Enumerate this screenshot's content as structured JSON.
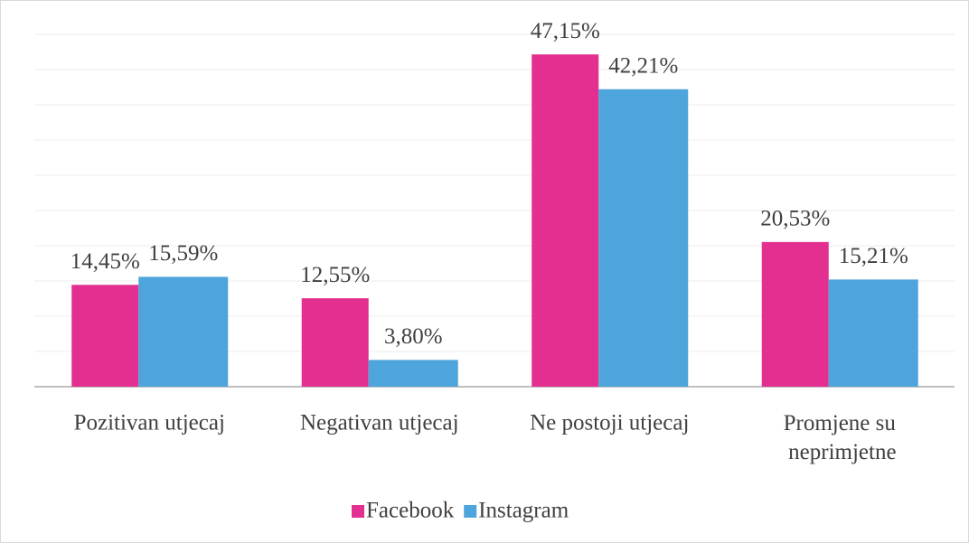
{
  "chart_data": {
    "type": "bar",
    "categories": [
      "Pozitivan utjecaj",
      "Negativan utjecaj",
      "Ne postoji utjecaj",
      "Promjene su neprimjetne"
    ],
    "series": [
      {
        "name": "Facebook",
        "color": "#e32f8f",
        "values": [
          14.45,
          12.55,
          47.15,
          20.53
        ],
        "value_labels": [
          "14,45%",
          "12,55%",
          "47,15%",
          "20,53%"
        ]
      },
      {
        "name": "Instagram",
        "color": "#4ea5dc",
        "values": [
          15.59,
          3.8,
          42.21,
          15.21
        ],
        "value_labels": [
          "15,59%",
          "3,80%",
          "42,21%",
          "15,21%"
        ]
      }
    ],
    "ylim": [
      0,
      50
    ],
    "yticks": [
      0,
      5,
      10,
      15,
      20,
      25,
      30,
      35,
      40,
      45,
      50
    ],
    "grid": true,
    "legend": "bottom"
  }
}
